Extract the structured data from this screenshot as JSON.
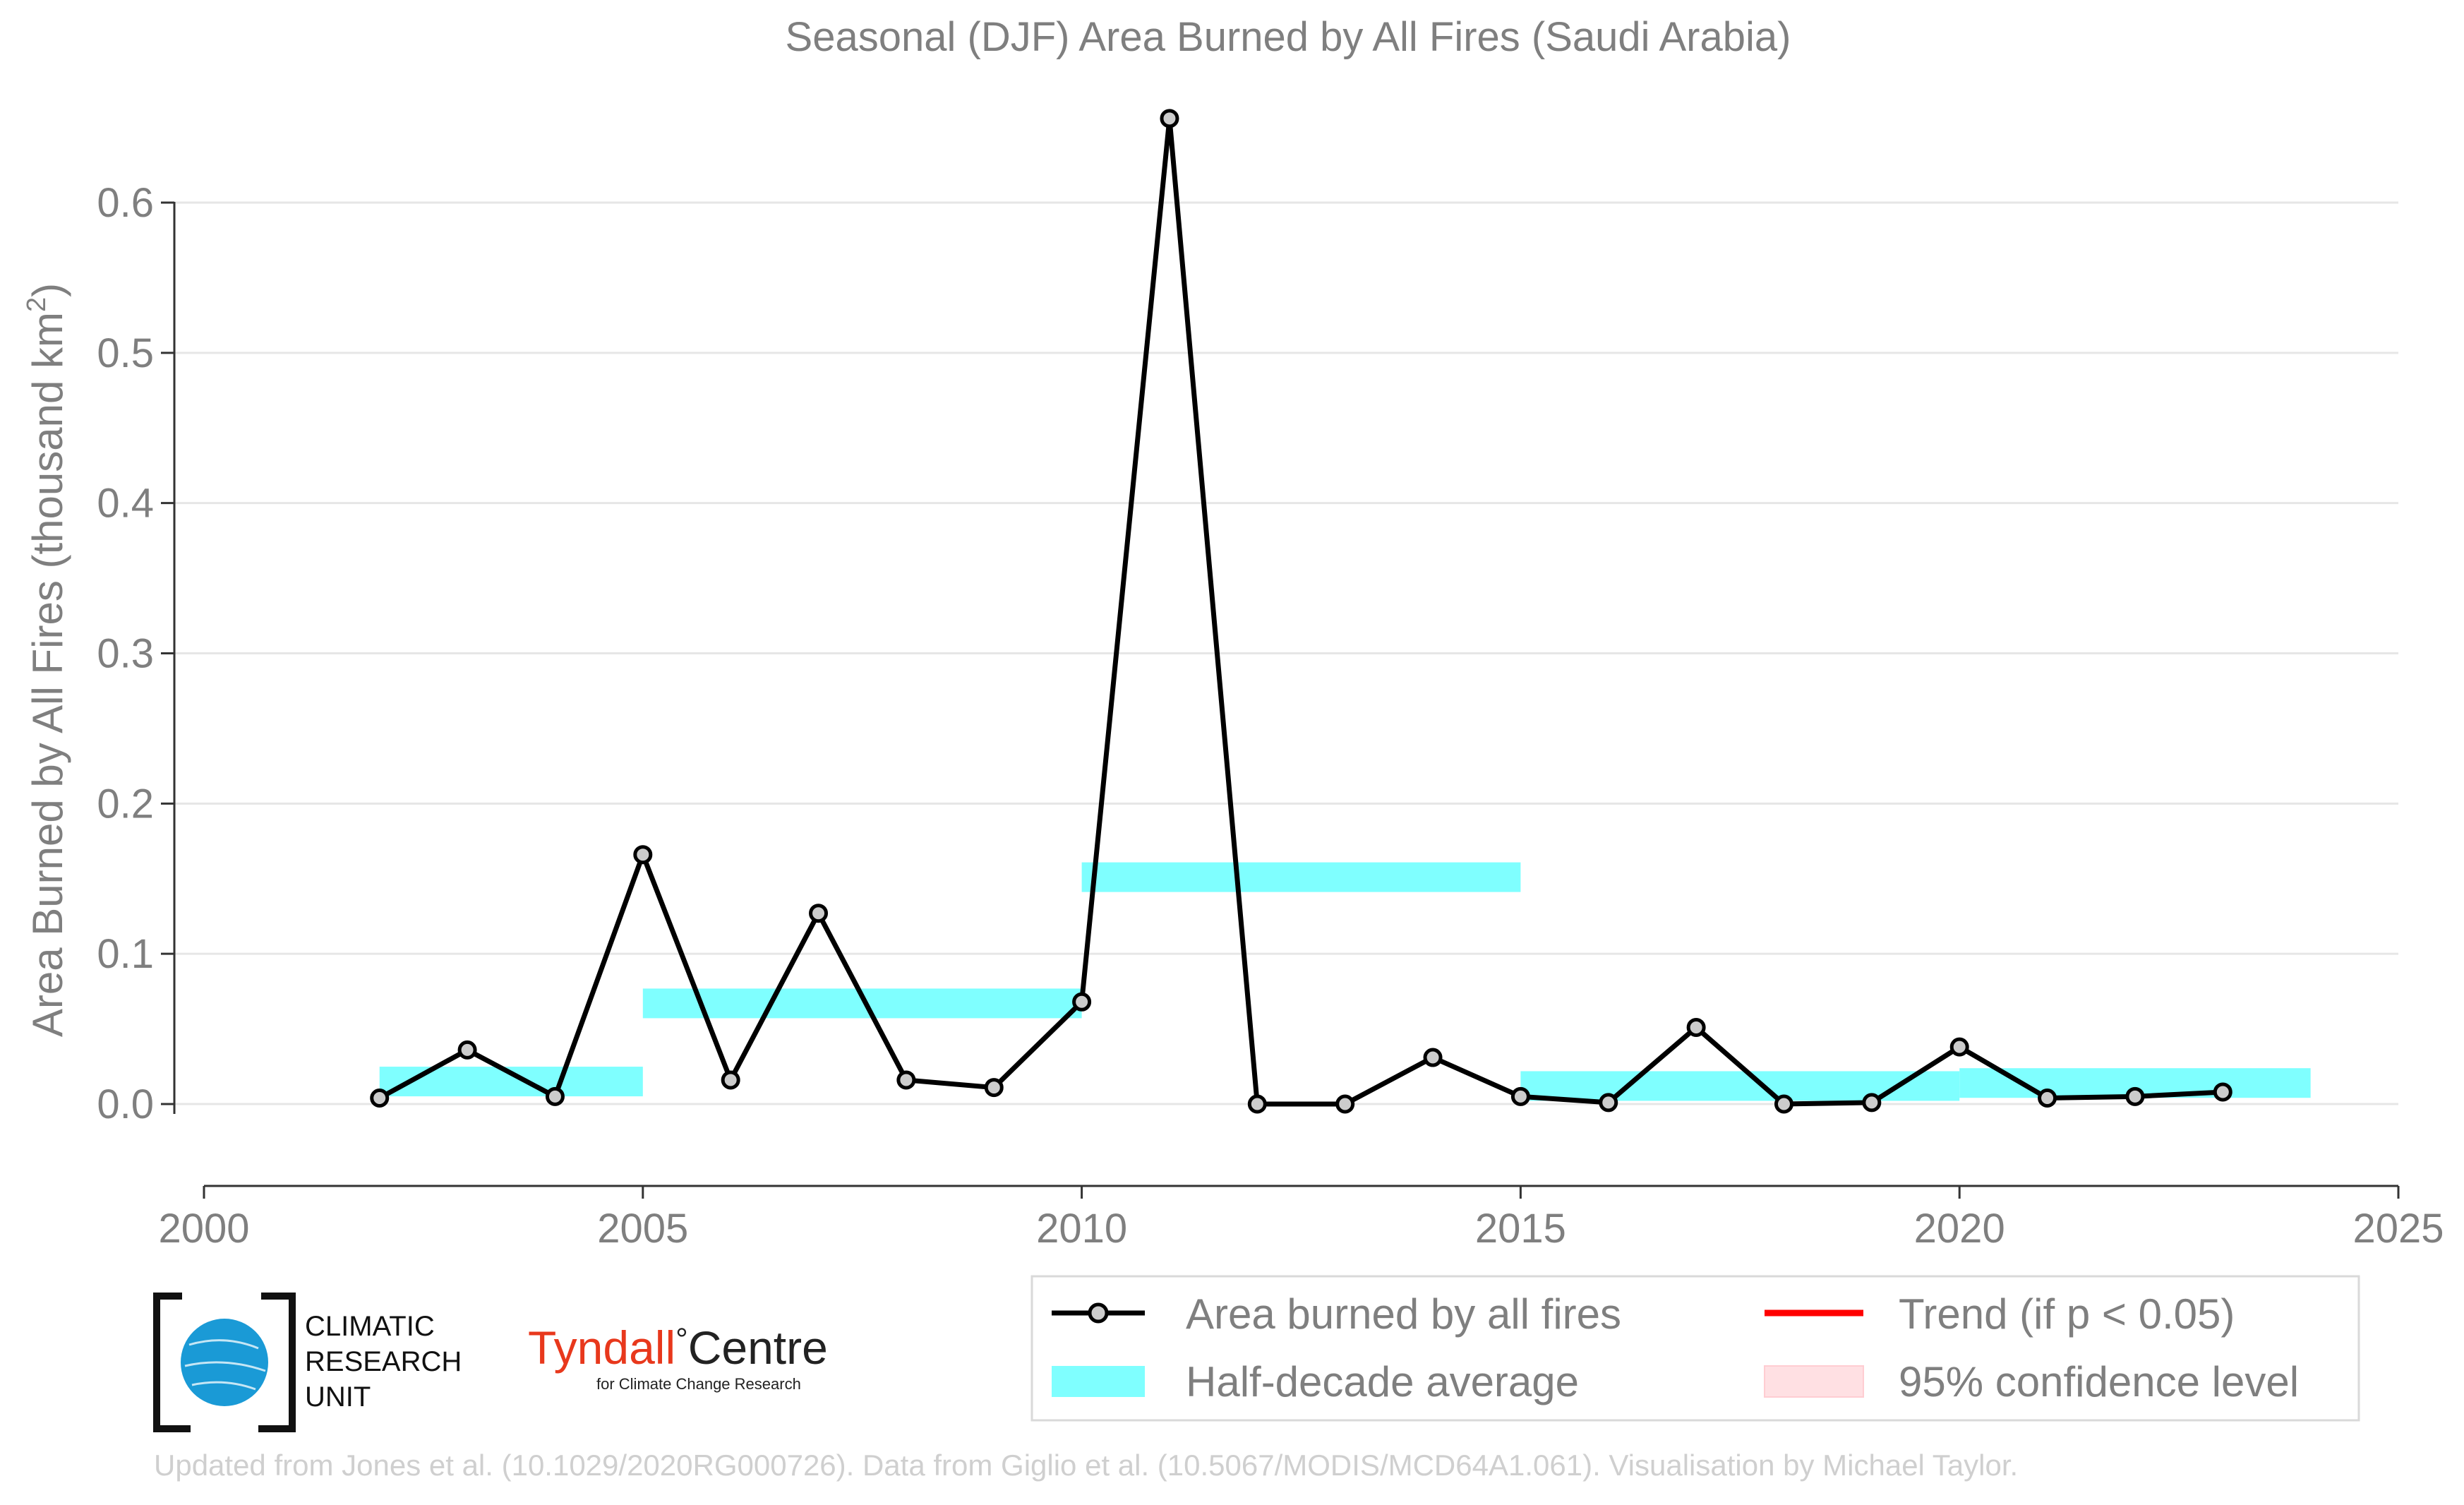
{
  "chart_data": {
    "type": "line",
    "title": "Seasonal (DJF) Area Burned by All Fires (Saudi Arabia)",
    "ylabel": "Area Burned by All Fires (thousand km",
    "ylabel_sup": "2",
    "ylabel_close": ")",
    "xlabel": "",
    "xlim": [
      2000,
      2025
    ],
    "ylim": [
      -0.055,
      0.67
    ],
    "x_ticks": [
      2000,
      2005,
      2010,
      2015,
      2020,
      2025
    ],
    "y_ticks": [
      0.0,
      0.1,
      0.2,
      0.3,
      0.4,
      0.5,
      0.6
    ],
    "y_tick_labels": [
      "0.0",
      "0.1",
      "0.2",
      "0.3",
      "0.4",
      "0.5",
      "0.6"
    ],
    "grid": true,
    "series": [
      {
        "name": "Area burned by all fires",
        "color": "#000000",
        "marker_fill": "#cccccc",
        "x": [
          2002,
          2003,
          2004,
          2005,
          2006,
          2007,
          2008,
          2009,
          2010,
          2011,
          2012,
          2013,
          2014,
          2015,
          2016,
          2017,
          2018,
          2019,
          2020,
          2021,
          2022,
          2023
        ],
        "values": [
          0.004,
          0.036,
          0.005,
          0.166,
          0.016,
          0.127,
          0.016,
          0.011,
          0.068,
          0.656,
          0.0,
          0.0,
          0.031,
          0.005,
          0.001,
          0.051,
          0.0,
          0.001,
          0.038,
          0.004,
          0.005,
          0.008
        ]
      }
    ],
    "half_decade_average": {
      "name": "Half-decade average",
      "color": "#7fffff",
      "segments": [
        {
          "x0": 2002,
          "x1": 2005,
          "value": 0.015
        },
        {
          "x0": 2005,
          "x1": 2010,
          "value": 0.067
        },
        {
          "x0": 2010,
          "x1": 2015,
          "value": 0.151
        },
        {
          "x0": 2015,
          "x1": 2020,
          "value": 0.012
        },
        {
          "x0": 2020,
          "x1": 2024,
          "value": 0.014
        }
      ]
    },
    "legend": {
      "placement": "bottom-right",
      "items": [
        {
          "label": "Area burned by all fires",
          "kind": "line-marker",
          "color": "#000000"
        },
        {
          "label": "Trend (if p < 0.05)",
          "kind": "line",
          "color": "#ff0000"
        },
        {
          "label": "Half-decade average",
          "kind": "band",
          "color": "#7fffff"
        },
        {
          "label": "95% confidence level",
          "kind": "band",
          "color": "#ffe0e3"
        }
      ]
    }
  },
  "logos": {
    "cru": [
      "CLIMATIC",
      "RESEARCH",
      "UNIT"
    ],
    "tyndall_main": "Tyndall",
    "tyndall_degree": "°",
    "tyndall_centre": "Centre",
    "tyndall_sub": "for Climate Change Research"
  },
  "footer": "Updated from Jones et al. (10.1029/2020RG000726). Data from Giglio et al. (10.5067/MODIS/MCD64A1.061). Visualisation by Michael Taylor.",
  "colors": {
    "text_gray": "#7f7f7f",
    "grid": "#e6e6e6",
    "cru_blue": "#1a9ad6",
    "tyndall_red": "#e8381c"
  }
}
